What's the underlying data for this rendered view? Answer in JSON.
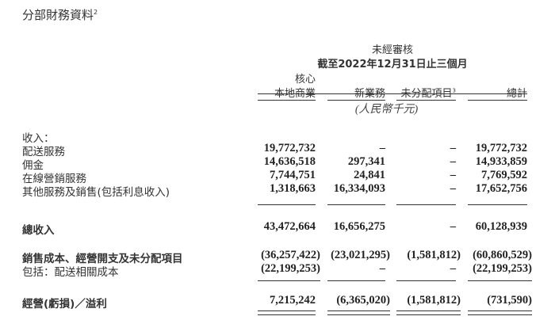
{
  "title": "分部財務資料",
  "title_note": "2",
  "header": {
    "audit": "未經審核",
    "period": "截至2022年12月31日止三個月",
    "columns": [
      {
        "line1": "核心",
        "line2": "本地商業"
      },
      {
        "line2": "新業務"
      },
      {
        "line2": "未分配項目",
        "note": "3"
      },
      {
        "line2": "總計"
      }
    ],
    "unit": "(人民幣千元)"
  },
  "revenue_heading": "收入：",
  "rows": [
    {
      "label": "配送服務",
      "values": [
        "19,772,732",
        "–",
        "–",
        "19,772,732"
      ]
    },
    {
      "label": "佣金",
      "values": [
        "14,636,518",
        "297,341",
        "–",
        "14,933,859"
      ]
    },
    {
      "label": "在線營銷服務",
      "values": [
        "7,744,751",
        "24,841",
        "–",
        "7,769,592"
      ]
    },
    {
      "label": "其他服務及銷售(包括利息收入)",
      "values": [
        "1,318,663",
        "16,334,093",
        "–",
        "17,652,756"
      ]
    },
    {
      "label": "總收入",
      "values": [
        "43,472,664",
        "16,656,275",
        "–",
        "60,128,939"
      ]
    },
    {
      "label": "銷售成本、經營開支及未分配項目",
      "values": [
        "(36,257,422)",
        "(23,021,295)",
        "(1,581,812)",
        "(60,860,529)"
      ]
    },
    {
      "label": "包括：配送相關成本",
      "values": [
        "(22,199,253)",
        "–",
        "–",
        "(22,199,253)"
      ]
    },
    {
      "label": "經營(虧損)／溢利",
      "values": [
        "7,215,242",
        "(6,365,020)",
        "(1,581,812)",
        "(731,590)"
      ]
    }
  ]
}
